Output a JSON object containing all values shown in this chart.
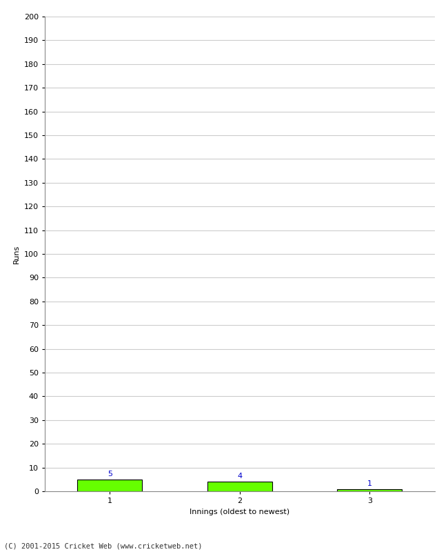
{
  "categories": [
    1,
    2,
    3
  ],
  "values": [
    5,
    4,
    1
  ],
  "bar_color": "#66ff00",
  "bar_edge_color": "#000000",
  "value_labels": [
    5,
    4,
    1
  ],
  "value_label_color": "#0000cc",
  "xlabel": "Innings (oldest to newest)",
  "ylabel": "Runs",
  "ylim": [
    0,
    200
  ],
  "yticks": [
    0,
    10,
    20,
    30,
    40,
    50,
    60,
    70,
    80,
    90,
    100,
    110,
    120,
    130,
    140,
    150,
    160,
    170,
    180,
    190,
    200
  ],
  "footer": "(C) 2001-2015 Cricket Web (www.cricketweb.net)",
  "background_color": "#ffffff",
  "grid_color": "#cccccc",
  "tick_label_fontsize": 8,
  "axis_label_fontsize": 8,
  "value_label_fontsize": 8,
  "bar_width": 0.5
}
